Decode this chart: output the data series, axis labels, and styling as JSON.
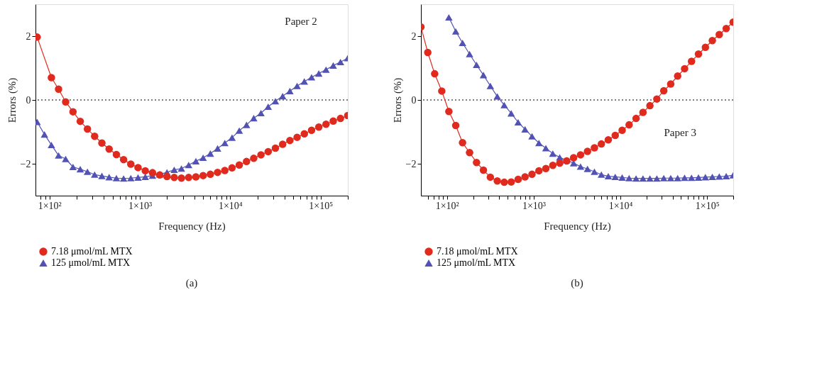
{
  "chart_data": [
    {
      "type": "line",
      "xlabel": "Frequency (Hz)",
      "ylabel": "Errors (%)",
      "log": "x",
      "grid": false,
      "legend": "bottom",
      "line_style": "solid",
      "xlim": [
        70,
        200000
      ],
      "ylim": [
        -3,
        3
      ],
      "xticks": [
        {
          "value": 100,
          "label": "1×10²"
        },
        {
          "value": 200,
          "label": null
        },
        {
          "value": 300,
          "label": null
        },
        {
          "value": 400,
          "label": null
        },
        {
          "value": 500,
          "label": null
        },
        {
          "value": 600,
          "label": null
        },
        {
          "value": 700,
          "label": null
        },
        {
          "value": 800,
          "label": null
        },
        {
          "value": 900,
          "label": null
        },
        {
          "value": 1000,
          "label": "1×10³"
        },
        {
          "value": 2000,
          "label": null
        },
        {
          "value": 3000,
          "label": null
        },
        {
          "value": 4000,
          "label": null
        },
        {
          "value": 5000,
          "label": null
        },
        {
          "value": 6000,
          "label": null
        },
        {
          "value": 7000,
          "label": null
        },
        {
          "value": 8000,
          "label": null
        },
        {
          "value": 9000,
          "label": null
        },
        {
          "value": 10000,
          "label": "1×10⁴"
        },
        {
          "value": 20000,
          "label": null
        },
        {
          "value": 30000,
          "label": null
        },
        {
          "value": 40000,
          "label": null
        },
        {
          "value": 50000,
          "label": null
        },
        {
          "value": 60000,
          "label": null
        },
        {
          "value": 70000,
          "label": null
        },
        {
          "value": 80000,
          "label": null
        },
        {
          "value": 90000,
          "label": null
        },
        {
          "value": 100000,
          "label": "1×10⁵"
        },
        {
          "value": 200000,
          "label": null
        },
        {
          "value": 80,
          "label": null
        },
        {
          "value": 90,
          "label": null
        }
      ],
      "yticks": [
        2,
        0,
        {
          "value": -2,
          "label": "−2"
        }
      ],
      "ref_lines": [
        {
          "axis": "y",
          "value": 0,
          "color": "#000000",
          "line_style": "dotted"
        }
      ],
      "annotations": [
        "Paper 2",
        "(a)"
      ],
      "x": [
        73,
        88,
        105,
        126,
        151,
        182,
        219,
        263,
        316,
        380,
        457,
        550,
        661,
        794,
        955,
        1148,
        1380,
        1660,
        1995,
        2399,
        2884,
        3467,
        4169,
        5012,
        6026,
        7244,
        8710,
        10470,
        12590,
        15140,
        18200,
        21880,
        26300,
        31620,
        38020,
        45710,
        54950,
        66070,
        79430,
        95500,
        114800,
        138000,
        166000,
        199500
      ],
      "series": [
        {
          "name": "7.18 μmol/mL MTX",
          "color": "#e02a1e",
          "marker": "circle",
          "values": [
            1.97,
            null,
            0.7,
            0.34,
            -0.06,
            -0.37,
            -0.67,
            -0.91,
            -1.14,
            -1.35,
            -1.54,
            -1.71,
            -1.87,
            -2.01,
            -2.12,
            -2.22,
            -2.28,
            -2.35,
            -2.4,
            -2.43,
            -2.45,
            -2.43,
            -2.41,
            -2.37,
            -2.33,
            -2.27,
            -2.21,
            -2.13,
            -2.04,
            -1.93,
            -1.83,
            -1.72,
            -1.62,
            -1.51,
            -1.39,
            -1.27,
            -1.17,
            -1.06,
            -0.95,
            -0.85,
            -0.76,
            -0.66,
            -0.58,
            -0.49
          ]
        },
        {
          "name": "125 μmol/mL MTX",
          "color": "#5252b4",
          "marker": "triangle",
          "values": [
            -0.69,
            -1.08,
            -1.41,
            -1.74,
            -1.85,
            -2.1,
            -2.17,
            -2.25,
            -2.34,
            -2.38,
            -2.42,
            -2.45,
            -2.46,
            -2.45,
            -2.43,
            -2.41,
            -2.37,
            -2.33,
            -2.27,
            -2.19,
            -2.15,
            -2.04,
            -1.92,
            -1.81,
            -1.68,
            -1.52,
            -1.35,
            -1.18,
            -0.96,
            -0.78,
            -0.57,
            -0.41,
            -0.21,
            -0.04,
            0.12,
            0.28,
            0.44,
            0.58,
            0.71,
            0.83,
            0.95,
            1.08,
            1.19,
            1.31
          ]
        }
      ]
    },
    {
      "type": "line",
      "xlabel": "Frequency (Hz)",
      "ylabel": "Errors (%)",
      "log": "x",
      "grid": false,
      "legend": "bottom",
      "line_style": "solid",
      "xlim": [
        50,
        200000
      ],
      "ylim": [
        -3,
        3
      ],
      "xticks": [
        {
          "value": 60,
          "label": null
        },
        {
          "value": 70,
          "label": null
        },
        {
          "value": 80,
          "label": null
        },
        {
          "value": 90,
          "label": null
        },
        {
          "value": 100,
          "label": "1×10²"
        },
        {
          "value": 200,
          "label": null
        },
        {
          "value": 300,
          "label": null
        },
        {
          "value": 400,
          "label": null
        },
        {
          "value": 500,
          "label": null
        },
        {
          "value": 600,
          "label": null
        },
        {
          "value": 700,
          "label": null
        },
        {
          "value": 800,
          "label": null
        },
        {
          "value": 900,
          "label": null
        },
        {
          "value": 1000,
          "label": "1×10³"
        },
        {
          "value": 2000,
          "label": null
        },
        {
          "value": 3000,
          "label": null
        },
        {
          "value": 4000,
          "label": null
        },
        {
          "value": 5000,
          "label": null
        },
        {
          "value": 6000,
          "label": null
        },
        {
          "value": 7000,
          "label": null
        },
        {
          "value": 8000,
          "label": null
        },
        {
          "value": 9000,
          "label": null
        },
        {
          "value": 10000,
          "label": "1×10⁴"
        },
        {
          "value": 20000,
          "label": null
        },
        {
          "value": 30000,
          "label": null
        },
        {
          "value": 40000,
          "label": null
        },
        {
          "value": 50000,
          "label": null
        },
        {
          "value": 60000,
          "label": null
        },
        {
          "value": 70000,
          "label": null
        },
        {
          "value": 80000,
          "label": null
        },
        {
          "value": 90000,
          "label": null
        },
        {
          "value": 100000,
          "label": "1×10⁵"
        },
        {
          "value": 200000,
          "label": null
        }
      ],
      "yticks": [
        2,
        0,
        {
          "value": -2,
          "label": "−2"
        }
      ],
      "ref_lines": [
        {
          "axis": "y",
          "value": 0,
          "color": "#000000",
          "line_style": "dotted"
        }
      ],
      "annotations": [
        "Paper 3",
        "(b)"
      ],
      "x": [
        50,
        60,
        72,
        87,
        105,
        126,
        151,
        182,
        219,
        263,
        316,
        380,
        457,
        550,
        661,
        794,
        955,
        1148,
        1380,
        1660,
        1995,
        2399,
        2884,
        3467,
        4169,
        5012,
        6026,
        7244,
        8710,
        10470,
        12590,
        15140,
        18200,
        21880,
        26300,
        31620,
        38020,
        45710,
        54950,
        66070,
        79430,
        95500,
        114800,
        138000,
        166000,
        199500
      ],
      "series": [
        {
          "name": "7.18 μmol/mL MTX",
          "color": "#e02a1e",
          "marker": "circle",
          "values": [
            2.29,
            1.49,
            0.82,
            0.28,
            -0.36,
            -0.8,
            -1.34,
            -1.65,
            -1.96,
            -2.2,
            -2.42,
            -2.54,
            -2.58,
            -2.57,
            -2.49,
            -2.41,
            -2.33,
            -2.22,
            -2.15,
            -2.05,
            -1.98,
            -1.91,
            -1.81,
            -1.72,
            -1.61,
            -1.5,
            -1.38,
            -1.25,
            -1.11,
            -0.95,
            -0.78,
            -0.58,
            -0.39,
            -0.18,
            0.03,
            0.29,
            0.5,
            0.75,
            0.98,
            1.21,
            1.44,
            1.65,
            1.86,
            2.05,
            2.24,
            2.44
          ]
        },
        {
          "name": "125 μmol/mL MTX",
          "color": "#5252b4",
          "marker": "triangle",
          "values": [
            null,
            null,
            null,
            null,
            2.59,
            2.15,
            1.79,
            1.44,
            1.1,
            0.78,
            0.44,
            0.11,
            -0.16,
            -0.42,
            -0.7,
            -0.92,
            -1.14,
            -1.35,
            -1.51,
            -1.68,
            -1.8,
            -1.89,
            -1.98,
            -2.09,
            -2.16,
            -2.25,
            -2.34,
            -2.39,
            -2.41,
            -2.43,
            -2.45,
            -2.46,
            -2.46,
            -2.46,
            -2.46,
            -2.45,
            -2.45,
            -2.45,
            -2.44,
            -2.44,
            -2.43,
            -2.42,
            -2.41,
            -2.4,
            -2.39,
            -2.36
          ]
        }
      ]
    }
  ]
}
